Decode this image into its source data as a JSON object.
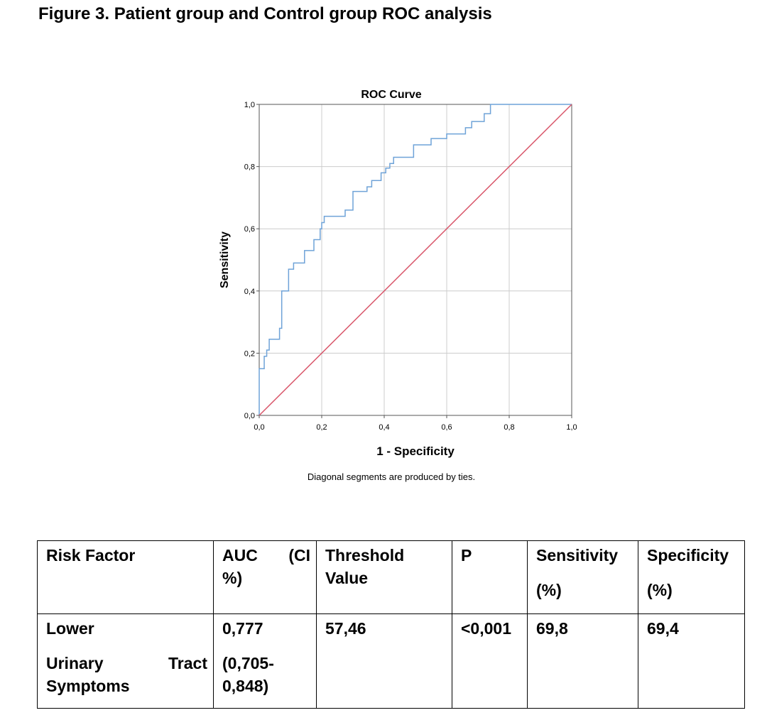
{
  "page": {
    "figure_title": "Figure 3. Patient group and Control group ROC analysis"
  },
  "chart_data": {
    "type": "line",
    "title": "ROC Curve",
    "xlabel": "1 - Specificity",
    "ylabel": "Sensitivity",
    "note": "Diagonal segments are produced by ties.",
    "xlim": [
      0,
      1
    ],
    "ylim": [
      0,
      1
    ],
    "x_ticks": [
      "0,0",
      "0,2",
      "0,4",
      "0,6",
      "0,8",
      "1,0"
    ],
    "y_ticks": [
      "0,0",
      "0,2",
      "0,4",
      "0,6",
      "0,8",
      "1,0"
    ],
    "grid": true,
    "colors": {
      "roc": "#6fa3d8",
      "reference": "#d9576b",
      "grid": "#cccccc"
    },
    "series": [
      {
        "values": [
          [
            0,
            0
          ],
          [
            0,
            0.15
          ],
          [
            0.016,
            0.15
          ],
          [
            0.016,
            0.19
          ],
          [
            0.024,
            0.19
          ],
          [
            0.024,
            0.21
          ],
          [
            0.032,
            0.21
          ],
          [
            0.032,
            0.245
          ],
          [
            0.065,
            0.245
          ],
          [
            0.065,
            0.28
          ],
          [
            0.072,
            0.28
          ],
          [
            0.072,
            0.4
          ],
          [
            0.094,
            0.4
          ],
          [
            0.094,
            0.47
          ],
          [
            0.11,
            0.47
          ],
          [
            0.11,
            0.49
          ],
          [
            0.145,
            0.49
          ],
          [
            0.145,
            0.53
          ],
          [
            0.175,
            0.53
          ],
          [
            0.175,
            0.565
          ],
          [
            0.195,
            0.565
          ],
          [
            0.195,
            0.6
          ],
          [
            0.2,
            0.6
          ],
          [
            0.2,
            0.62
          ],
          [
            0.208,
            0.62
          ],
          [
            0.208,
            0.64
          ],
          [
            0.275,
            0.64
          ],
          [
            0.275,
            0.66
          ],
          [
            0.3,
            0.66
          ],
          [
            0.3,
            0.72
          ],
          [
            0.345,
            0.72
          ],
          [
            0.345,
            0.735
          ],
          [
            0.36,
            0.735
          ],
          [
            0.36,
            0.755
          ],
          [
            0.39,
            0.755
          ],
          [
            0.39,
            0.78
          ],
          [
            0.405,
            0.78
          ],
          [
            0.405,
            0.795
          ],
          [
            0.418,
            0.795
          ],
          [
            0.418,
            0.81
          ],
          [
            0.43,
            0.81
          ],
          [
            0.43,
            0.83
          ],
          [
            0.494,
            0.83
          ],
          [
            0.494,
            0.87
          ],
          [
            0.55,
            0.87
          ],
          [
            0.55,
            0.89
          ],
          [
            0.6,
            0.89
          ],
          [
            0.6,
            0.905
          ],
          [
            0.66,
            0.905
          ],
          [
            0.66,
            0.925
          ],
          [
            0.68,
            0.925
          ],
          [
            0.68,
            0.945
          ],
          [
            0.72,
            0.945
          ],
          [
            0.72,
            0.97
          ],
          [
            0.74,
            0.97
          ],
          [
            0.74,
            1.0
          ],
          [
            1.0,
            1.0
          ]
        ]
      },
      {
        "values": [
          [
            0,
            0
          ],
          [
            1,
            1
          ]
        ]
      }
    ]
  },
  "table": {
    "headers": [
      [
        "Risk Factor"
      ],
      [
        "AUC",
        "(CI",
        "%)"
      ],
      [
        "Threshold",
        "Value"
      ],
      [
        "P"
      ],
      [
        "Sensitivity",
        "(%)"
      ],
      [
        "Specificity",
        "(%)"
      ]
    ],
    "row": {
      "risk_factor": [
        "Lower",
        "Urinary",
        "Tract",
        "Symptoms"
      ],
      "auc": [
        "0,777",
        "(0,705-",
        "0,848)"
      ],
      "threshold": "57,46",
      "p": "<0,001",
      "sensitivity": "69,8",
      "specificity": "69,4"
    }
  }
}
